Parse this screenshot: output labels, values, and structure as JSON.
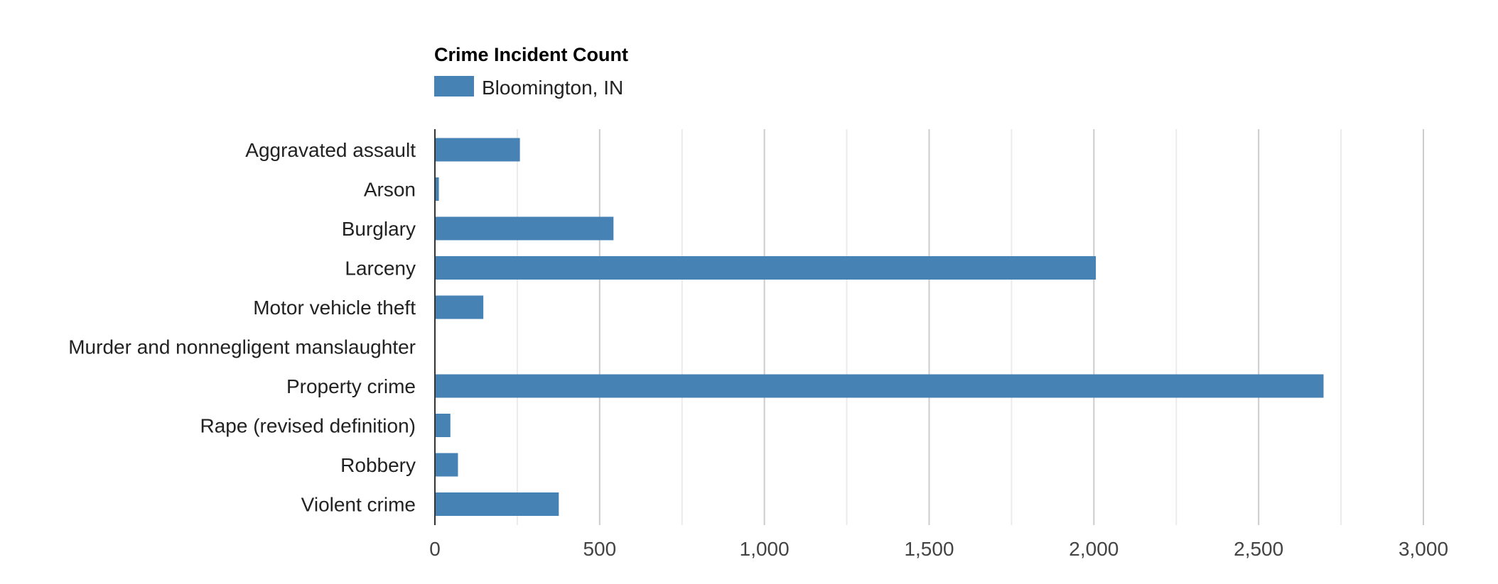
{
  "chart_data": {
    "type": "bar",
    "orientation": "horizontal",
    "title": "Crime Incident Count",
    "categories": [
      "Aggravated assault",
      "Arson",
      "Burglary",
      "Larceny",
      "Motor vehicle theft",
      "Murder and nonnegligent manslaughter",
      "Property crime",
      "Rape (revised definition)",
      "Robbery",
      "Violent crime"
    ],
    "series": [
      {
        "name": "Bloomington, IN",
        "color": "#4682b4",
        "values": [
          258,
          12,
          542,
          2006,
          147,
          1,
          2697,
          47,
          70,
          376
        ]
      }
    ],
    "xlim": [
      0,
      3000
    ],
    "xticks": [
      0,
      500,
      1000,
      1500,
      2000,
      2500,
      3000
    ],
    "xtick_labels": [
      "0",
      "500",
      "1,000",
      "1,500",
      "2,000",
      "2,500",
      "3,000"
    ],
    "xlabel": "",
    "ylabel": "",
    "grid": true,
    "legend_position": "top-left"
  }
}
